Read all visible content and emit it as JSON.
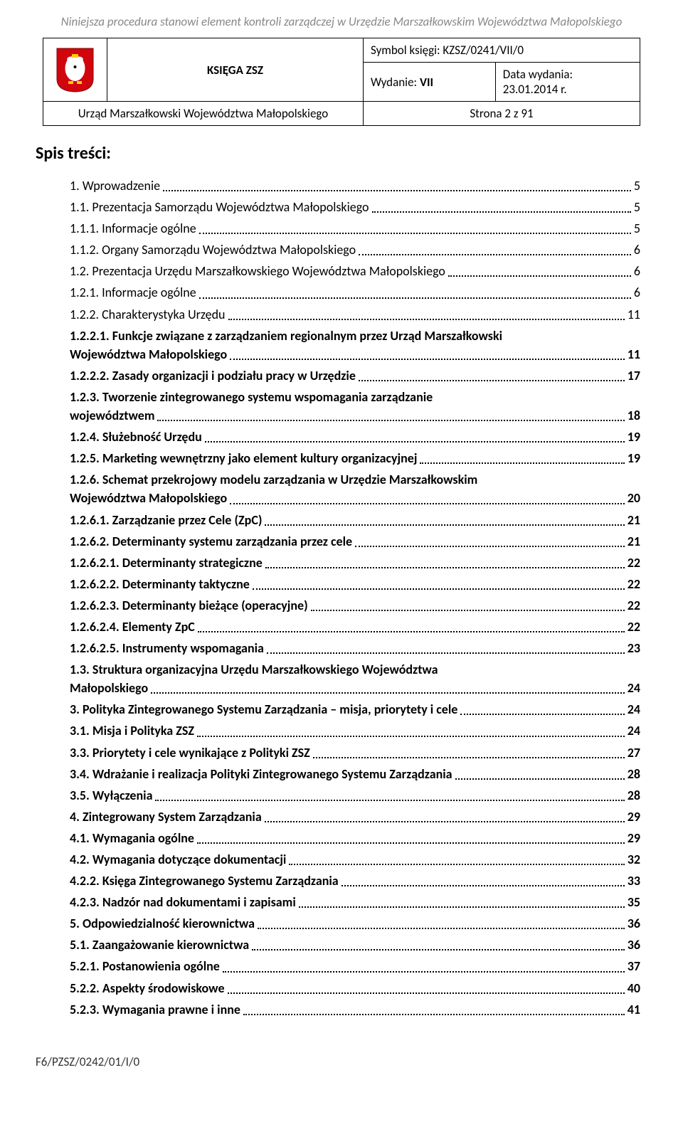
{
  "top_note": "Niniejsza procedura stanowi element kontroli zarządczej w Urzędzie Marszałkowskim Województwa Małopolskiego",
  "header": {
    "title": "KSIĘGA ZSZ",
    "symbol_label": "Symbol księgi: KZSZ/0241/VII/0",
    "wydanie_label": "Wydanie: ",
    "wydanie_value": "VII",
    "data_label": "Data wydania:",
    "data_value": "23.01.2014 r.",
    "office": "Urząd Marszałkowski Województwa Małopolskiego",
    "page_info": "Strona 2 z 91"
  },
  "spis_heading": "Spis treści:",
  "toc": [
    {
      "text": "1. Wprowadzenie",
      "page": "5",
      "bold": false
    },
    {
      "text": "1.1. Prezentacja Samorządu Województwa Małopolskiego",
      "page": "5",
      "bold": false
    },
    {
      "text": "1.1.1. Informacje ogólne",
      "page": "5",
      "bold": false
    },
    {
      "text": "1.1.2. Organy Samorządu Województwa Małopolskiego",
      "page": "6",
      "bold": false
    },
    {
      "text": "1.2. Prezentacja Urzędu Marszałkowskiego Województwa Małopolskiego",
      "page": "6",
      "bold": false
    },
    {
      "text": "1.2.1. Informacje ogólne",
      "page": "6",
      "bold": false
    },
    {
      "text": "1.2.2. Charakterystyka Urzędu",
      "page": "11",
      "bold": false
    },
    {
      "text": "1.2.2.1. Funkcje związane z zarządzaniem regionalnym przez Urząd Marszałkowski",
      "text2": "Województwa Małopolskiego",
      "page": "11",
      "bold": true,
      "multi": true
    },
    {
      "text": "1.2.2.2. Zasady organizacji i podziału pracy w Urzędzie",
      "page": "17",
      "bold": true
    },
    {
      "text": "1.2.3. Tworzenie zintegrowanego systemu wspomagania zarządzanie",
      "text2": "województwem",
      "page": "18",
      "bold": true,
      "multi": true
    },
    {
      "text": "1.2.4. Służebność Urzędu",
      "page": "19",
      "bold": true
    },
    {
      "text": "1.2.5. Marketing wewnętrzny jako element kultury organizacyjnej",
      "page": "19",
      "bold": true
    },
    {
      "text": "1.2.6. Schemat przekrojowy modelu zarządzania w Urzędzie Marszałkowskim",
      "text2": "Województwa Małopolskiego",
      "page": "20",
      "bold": true,
      "multi": true
    },
    {
      "text": "1.2.6.1. Zarządzanie przez Cele (ZpC)",
      "page": "21",
      "bold": true
    },
    {
      "text": "1.2.6.2. Determinanty systemu zarządzania przez cele",
      "page": "21",
      "bold": true
    },
    {
      "text": "1.2.6.2.1. Determinanty strategiczne",
      "page": "22",
      "bold": true
    },
    {
      "text": "1.2.6.2.2. Determinanty taktyczne",
      "page": "22",
      "bold": true
    },
    {
      "text": "1.2.6.2.3. Determinanty bieżące (operacyjne)",
      "page": "22",
      "bold": true
    },
    {
      "text": "1.2.6.2.4. Elementy ZpC",
      "page": "22",
      "bold": true
    },
    {
      "text": "1.2.6.2.5. Instrumenty wspomagania",
      "page": "23",
      "bold": true
    },
    {
      "text": "1.3. Struktura organizacyjna Urzędu Marszałkowskiego Województwa",
      "text2": "Małopolskiego",
      "page": "24",
      "bold": true,
      "multi": true
    },
    {
      "text": "3. Polityka Zintegrowanego Systemu Zarządzania – misja, priorytety i cele",
      "page": "24",
      "bold": true
    },
    {
      "text": "3.1. Misja i Polityka ZSZ",
      "page": "24",
      "bold": true
    },
    {
      "text": "3.3. Priorytety i cele wynikające z Polityki ZSZ",
      "page": "27",
      "bold": true
    },
    {
      "text": "3.4. Wdrażanie i realizacja Polityki Zintegrowanego Systemu Zarządzania",
      "page": "28",
      "bold": true
    },
    {
      "text": "3.5. Wyłączenia",
      "page": "28",
      "bold": true
    },
    {
      "text": "4. Zintegrowany System Zarządzania",
      "page": "29",
      "bold": true
    },
    {
      "text": "4.1. Wymagania ogólne",
      "page": "29",
      "bold": true
    },
    {
      "text": "4.2. Wymagania dotyczące dokumentacji",
      "page": "32",
      "bold": true
    },
    {
      "text": "4.2.2. Księga Zintegrowanego Systemu Zarządzania",
      "page": "33",
      "bold": true
    },
    {
      "text": "4.2.3. Nadzór nad dokumentami i zapisami",
      "page": "35",
      "bold": true
    },
    {
      "text": "5. Odpowiedzialność kierownictwa",
      "page": "36",
      "bold": true
    },
    {
      "text": "5.1. Zaangażowanie kierownictwa",
      "page": "36",
      "bold": true
    },
    {
      "text": "5.2.1. Postanowienia ogólne",
      "page": "37",
      "bold": true
    },
    {
      "text": "5.2.2. Aspekty środowiskowe",
      "page": "40",
      "bold": true
    },
    {
      "text": "5.2.3. Wymagania prawne i inne",
      "page": "41",
      "bold": true
    }
  ],
  "footer_code": "F6/PZSZ/0242/01/I/0",
  "colors": {
    "text": "#000000",
    "muted": "#888888",
    "background": "#ffffff",
    "logo_red": "#d1050d",
    "logo_yellow": "#ffcc00",
    "logo_white": "#ffffff"
  },
  "fonts": {
    "body_family": "Calibri, Arial, sans-serif",
    "body_size_pt": 13,
    "heading_size_pt": 18,
    "top_note_size_pt": 12
  }
}
